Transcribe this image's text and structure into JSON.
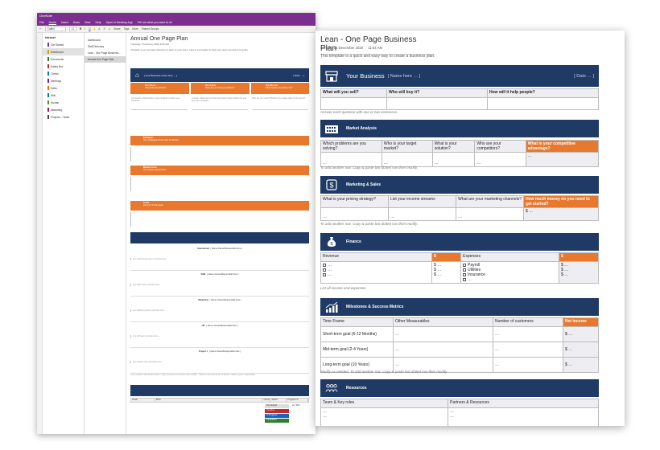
{
  "back_window": {
    "app_title": "OneNote",
    "menu": [
      "File",
      "Home",
      "Insert",
      "Draw",
      "View",
      "Help"
    ],
    "ribbon": {
      "font": "Calibri",
      "size": "11",
      "open_desktop": "Open in Desktop App",
      "tell_me": "Tell me what you want to do",
      "share": "Share",
      "tags": "Tags",
      "more": "More",
      "shared": "Shared Groups"
    },
    "notebook_name": "Intranet",
    "sections": [
      {
        "label": "Get Started",
        "color": "#7a2f8f"
      },
      {
        "label": "Dashboard",
        "color": "#c8a400"
      },
      {
        "label": "Documents",
        "color": "#2e7d32"
      },
      {
        "label": "Safety Box",
        "color": "#c62828"
      },
      {
        "label": "Clients",
        "color": "#0277bd"
      },
      {
        "label": "Meetings",
        "color": "#6a1b9a"
      },
      {
        "label": "Sales",
        "color": "#ef6c00"
      },
      {
        "label": "Wiki",
        "color": "#00838f"
      },
      {
        "label": "Human",
        "color": "#558b2f"
      },
      {
        "label": "Marketing",
        "color": "#ad1457"
      },
      {
        "label": "Projects – Tasks",
        "color": "#5d4037"
      }
    ],
    "pages": [
      "Dashboard",
      "Staff Directory",
      "Lean - One Page Business...",
      "Annual One Page Plan"
    ],
    "page_title": "Annual One Page Plan",
    "page_date": "Thursday, 6 February 2020    9:00 AM",
    "page_intro": "Visualise your company direction & steer to your team. Here's a template to help your team around your goals.",
    "header_band": {
      "text": "[ Your Business name here … ]",
      "date": "[ Date … ]"
    },
    "orange_heads": [
      {
        "title": "Our Values",
        "sub": "Show will you believe?"
      },
      {
        "title": "Our Vision",
        "sub": "What are you trying to achieve?"
      },
      {
        "title": "Our Mission",
        "sub": "What needs to be done now?"
      }
    ],
    "value_texts": [
      "List beliefs, philosophies, and principles to drive your business…",
      "A vision, ideas and concise description about where do you see your company…",
      "Why do you exist? What do you make value to the world?…"
    ],
    "strategies": {
      "title": "Strategies",
      "sub": "Your strategies for the next 12 Months"
    },
    "market_focus": {
      "title": "Market Focus",
      "sub": "Our market opportunities"
    },
    "goals": {
      "title": "Goals",
      "sub": "List your 3 Year goals"
    },
    "priorities": {
      "title": "Priorities"
    },
    "priority_rows": [
      {
        "name": "Operational",
        "owner": "[ Name Owner/Responsible here ]",
        "hint": "List Operational team priorities here…"
      },
      {
        "name": "R&D",
        "owner": "[ Name Owner/Responsible here ]",
        "hint": "List R&D team priorities here…"
      },
      {
        "name": "Marketing",
        "owner": "[ Name Owner/Responsible here ]",
        "hint": "List Marketing team priorities here…"
      },
      {
        "name": "HR",
        "owner": "[ Name Owner/Responsible here ]",
        "hint": "List HR team priorities here…"
      },
      {
        "name": "Project 1",
        "owner": "[ Name Owner/Responsible here ]",
        "hint": "List Project team priorities here…"
      }
    ],
    "priorities_note": "If you need to add another team / copy & paste next section then modify – follow a same process if it doesn't relate to your organization",
    "okr": {
      "title": "Objectives & Key Results",
      "headers": [
        "Goals",
        "KPIS",
        "Owner",
        "Status",
        "Progress %"
      ],
      "statuses": [
        "Not Started",
        "Overdue",
        "In Progress",
        "Completed"
      ],
      "progress": "eg. 30%"
    }
  },
  "front_window": {
    "title": "Lean - One Page Business Plan",
    "date": "Sunday, 13 December 2020",
    "time": "11:04 AM",
    "intro": "This template is a quick and easy way to create a business plan.",
    "business_band": {
      "label": "Your Business",
      "placeholder": "[ Name here … ]",
      "date": "[ Date … ]"
    },
    "business_table": {
      "headers": [
        "What will you sell?",
        "Who will buy it?",
        "How will it help people?"
      ],
      "note": "Answer each question with one or two sentences."
    },
    "market": {
      "label": "Market Analysis",
      "headers": [
        "Which problems are you solving?",
        "Who is your target market?",
        "What is your solution?",
        "Who are your competitors?",
        "What is your competitive advantage?"
      ],
      "cells": [
        "…",
        "…",
        "…",
        "…",
        "…"
      ],
      "note": "To add another row: Copy & paste last dotted row then modify."
    },
    "marketing": {
      "label": "Marketing & Sales",
      "headers": [
        "What is your pricing strategy?",
        "List your income streams",
        "What are your marketing channels?",
        "How much money do you need to get started?"
      ],
      "cells": [
        "…",
        "…",
        "…",
        "$ …"
      ],
      "note": "To add another row: Copy & paste last dotted row then modify."
    },
    "finance": {
      "label": "Finance",
      "headers": [
        "Revenue",
        "$",
        "Expenses",
        "$"
      ],
      "revenue_items": [
        "…",
        "…",
        "…"
      ],
      "revenue_values": [
        "$ …",
        "$ …",
        "$ …"
      ],
      "expense_items": [
        "Payroll",
        "Utilities",
        "Insurance",
        "…"
      ],
      "expense_values": [
        "$ …",
        "$ …",
        "$ …"
      ],
      "note": "List all income and expenses."
    },
    "milestones": {
      "label": "Milestones & Success Metrics",
      "headers": [
        "Time Frame",
        "Other Measurables",
        "Number of customers",
        "Net income"
      ],
      "rows": [
        {
          "frame": "Short-term goal (6-12 Months)",
          "other": "…",
          "customers": "…",
          "income": "$ …"
        },
        {
          "frame": "Mid-term goal (2-4 Years)",
          "other": "…",
          "customers": "…",
          "income": "$ …"
        },
        {
          "frame": "Long-term goal (10 Years)",
          "other": "…",
          "customers": "…",
          "income": "$ …"
        }
      ],
      "note": "Modify as needed. To add another row: Copy & paste last dotted row then modify."
    },
    "resources": {
      "label": "Resources",
      "headers": [
        "Team & Key roles",
        "Partners & Resources"
      ],
      "cells": [
        "…",
        "…",
        "…",
        "…"
      ]
    }
  },
  "colors": {
    "navy": "#1f3a64",
    "orange": "#e9782f",
    "onenote_purple": "#7a2f8f",
    "header_cell": "#eeedf1"
  }
}
